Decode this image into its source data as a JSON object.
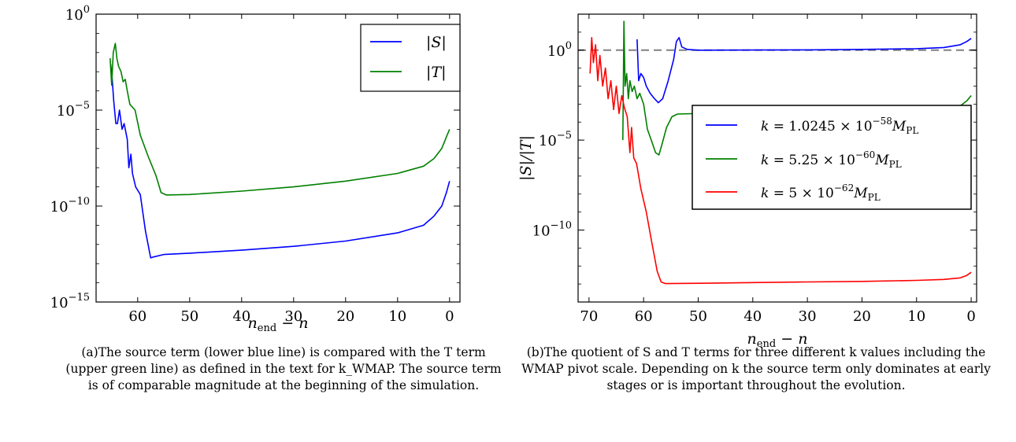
{
  "chart_data": [
    {
      "type": "line",
      "title": "",
      "xlabel": "n_end − n",
      "ylabel": "",
      "log_y": true,
      "xlim": [
        68,
        -2
      ],
      "ylim": [
        1e-15,
        1
      ],
      "x_ticks": [
        60,
        50,
        40,
        30,
        20,
        10,
        0
      ],
      "y_ticks": [
        {
          "value": 1,
          "base": "10",
          "exp": "0"
        },
        {
          "value": 1e-05,
          "base": "10",
          "exp": "−5"
        },
        {
          "value": 1e-10,
          "base": "10",
          "exp": "−10"
        },
        {
          "value": 1e-15,
          "base": "10",
          "exp": "−15"
        }
      ],
      "grid": false,
      "legend_position": "top-right",
      "series": [
        {
          "name": "|S|",
          "color": "#0000ff",
          "points": [
            [
              65.2,
              0.0025
            ],
            [
              64.9,
              0.0004
            ],
            [
              64.6,
              3e-05
            ],
            [
              64.2,
              2e-06
            ],
            [
              63.9,
              2e-06
            ],
            [
              63.5,
              1e-05
            ],
            [
              63.0,
              1e-06
            ],
            [
              62.6,
              2e-06
            ],
            [
              62.0,
              3e-07
            ],
            [
              61.7,
              1e-08
            ],
            [
              61.3,
              5e-08
            ],
            [
              61.0,
              5e-09
            ],
            [
              60.4,
              1e-09
            ],
            [
              59.5,
              4e-10
            ],
            [
              58.5,
              5e-12
            ],
            [
              57.5,
              2e-13
            ],
            [
              57.0,
              2.2e-13
            ],
            [
              55.0,
              3e-13
            ],
            [
              50,
              3.5e-13
            ],
            [
              40,
              5e-13
            ],
            [
              30,
              8e-13
            ],
            [
              20,
              1.5e-12
            ],
            [
              10,
              4e-12
            ],
            [
              5,
              1e-11
            ],
            [
              3,
              3e-11
            ],
            [
              1.5,
              1e-10
            ],
            [
              0.6,
              5e-10
            ],
            [
              0,
              2e-09
            ]
          ]
        },
        {
          "name": "|T|",
          "color": "#008000",
          "points": [
            [
              65.3,
              0.005
            ],
            [
              65.0,
              0.0002
            ],
            [
              64.7,
              0.01
            ],
            [
              64.3,
              0.03
            ],
            [
              64.0,
              0.005
            ],
            [
              63.7,
              0.002
            ],
            [
              63.2,
              0.001
            ],
            [
              62.8,
              0.0003
            ],
            [
              62.4,
              0.0004
            ],
            [
              62.0,
              0.0001
            ],
            [
              61.5,
              2e-05
            ],
            [
              60.5,
              1e-05
            ],
            [
              59.5,
              5e-07
            ],
            [
              58.0,
              4e-08
            ],
            [
              56.5,
              4e-09
            ],
            [
              55.5,
              5e-10
            ],
            [
              54.5,
              3.8e-10
            ],
            [
              50,
              4e-10
            ],
            [
              40,
              6e-10
            ],
            [
              30,
              1e-09
            ],
            [
              20,
              2e-09
            ],
            [
              10,
              5e-09
            ],
            [
              5,
              1.2e-08
            ],
            [
              3,
              3e-08
            ],
            [
              1.5,
              1e-07
            ],
            [
              0.6,
              4e-07
            ],
            [
              0,
              1e-06
            ]
          ]
        }
      ]
    },
    {
      "type": "line",
      "title": "",
      "xlabel": "n_end − n",
      "ylabel": "|S|/|T|",
      "log_y": true,
      "xlim": [
        72,
        -1
      ],
      "ylim": [
        1e-14,
        100
      ],
      "x_ticks": [
        70,
        60,
        50,
        40,
        30,
        20,
        10,
        0
      ],
      "y_ticks": [
        {
          "value": 1,
          "base": "10",
          "exp": "0"
        },
        {
          "value": 1e-05,
          "base": "10",
          "exp": "−5"
        },
        {
          "value": 1e-10,
          "base": "10",
          "exp": "−10"
        }
      ],
      "reference_line": {
        "y": 1,
        "color": "#808080",
        "style": "dashed"
      },
      "grid": false,
      "legend_position": "center-right",
      "series": [
        {
          "name": "k = 1.0245 × 10⁻⁵⁸ M_PL",
          "color": "#0000ff",
          "points": [
            [
              61.2,
              4
            ],
            [
              60.9,
              0.02
            ],
            [
              60.5,
              0.05
            ],
            [
              60,
              0.03
            ],
            [
              59.5,
              0.01
            ],
            [
              58.8,
              0.004
            ],
            [
              58,
              0.002
            ],
            [
              57.3,
              0.0012
            ],
            [
              56.5,
              0.002
            ],
            [
              55.5,
              0.02
            ],
            [
              54.5,
              0.3
            ],
            [
              54,
              3
            ],
            [
              53.5,
              5
            ],
            [
              53,
              1.5
            ],
            [
              52,
              1.1
            ],
            [
              50,
              1.0
            ],
            [
              40,
              1.02
            ],
            [
              30,
              1.04
            ],
            [
              20,
              1.1
            ],
            [
              10,
              1.2
            ],
            [
              5,
              1.4
            ],
            [
              2,
              2
            ],
            [
              0.8,
              3
            ],
            [
              0,
              4.5
            ]
          ]
        },
        {
          "name": "k = 5.25 × 10⁻⁶⁰ M_PL",
          "color": "#008000",
          "points": [
            [
              63.8,
              1e-05
            ],
            [
              63.6,
              40
            ],
            [
              63.4,
              0.01
            ],
            [
              63.1,
              0.05
            ],
            [
              62.8,
              0.002
            ],
            [
              62.5,
              0.02
            ],
            [
              62.1,
              0.005
            ],
            [
              61.7,
              0.01
            ],
            [
              61.2,
              0.002
            ],
            [
              60.7,
              0.004
            ],
            [
              60,
              0.001
            ],
            [
              59.3,
              4e-05
            ],
            [
              58.6,
              1e-05
            ],
            [
              57.8,
              2e-06
            ],
            [
              57.2,
              1.5e-06
            ],
            [
              56.7,
              5e-06
            ],
            [
              55.8,
              5e-05
            ],
            [
              54.8,
              0.0002
            ],
            [
              53.8,
              0.00028
            ],
            [
              50,
              0.0003
            ],
            [
              40,
              0.0003
            ],
            [
              30,
              0.00032
            ],
            [
              20,
              0.00036
            ],
            [
              10,
              0.00042
            ],
            [
              5,
              0.0005
            ],
            [
              2,
              0.0008
            ],
            [
              0.8,
              0.0015
            ],
            [
              0,
              0.003
            ]
          ]
        },
        {
          "name": "k = 5 × 10⁻⁶² M_PL",
          "color": "#ff0000",
          "points": [
            [
              69.8,
              0.05
            ],
            [
              69.5,
              5
            ],
            [
              69.2,
              0.2
            ],
            [
              68.8,
              2
            ],
            [
              68.4,
              0.02
            ],
            [
              68,
              0.5
            ],
            [
              67.5,
              0.01
            ],
            [
              67,
              0.1
            ],
            [
              66.5,
              0.002
            ],
            [
              66,
              0.02
            ],
            [
              65.5,
              0.0005
            ],
            [
              65,
              0.01
            ],
            [
              64.5,
              0.0003
            ],
            [
              64,
              0.003
            ],
            [
              63.5,
              0.0006
            ],
            [
              63,
              0.0002
            ],
            [
              62.5,
              2e-06
            ],
            [
              62.2,
              5e-05
            ],
            [
              61.8,
              1e-06
            ],
            [
              61.3,
              5e-07
            ],
            [
              60.5,
              2e-08
            ],
            [
              59.5,
              1e-09
            ],
            [
              58.5,
              2e-11
            ],
            [
              57.5,
              5e-13
            ],
            [
              56.8,
              1.3e-13
            ],
            [
              56,
              1.05e-13
            ],
            [
              50,
              1.1e-13
            ],
            [
              40,
              1.2e-13
            ],
            [
              30,
              1.3e-13
            ],
            [
              20,
              1.4e-13
            ],
            [
              10,
              1.6e-13
            ],
            [
              5,
              1.8e-13
            ],
            [
              2,
              2.2e-13
            ],
            [
              0.8,
              3e-13
            ],
            [
              0,
              4.5e-13
            ]
          ]
        }
      ]
    }
  ],
  "captions": {
    "a": "(a)The source term (lower blue line) is compared with the T term (upper green line) as defined in the text for k_WMAP. The source term is of comparable magnitude at the beginning of the simulation.",
    "b": "(b)The quotient of S and T terms for three different k values including the WMAP pivot scale. Depending on k the source term only dominates at early stages or is important throughout the evolution."
  }
}
